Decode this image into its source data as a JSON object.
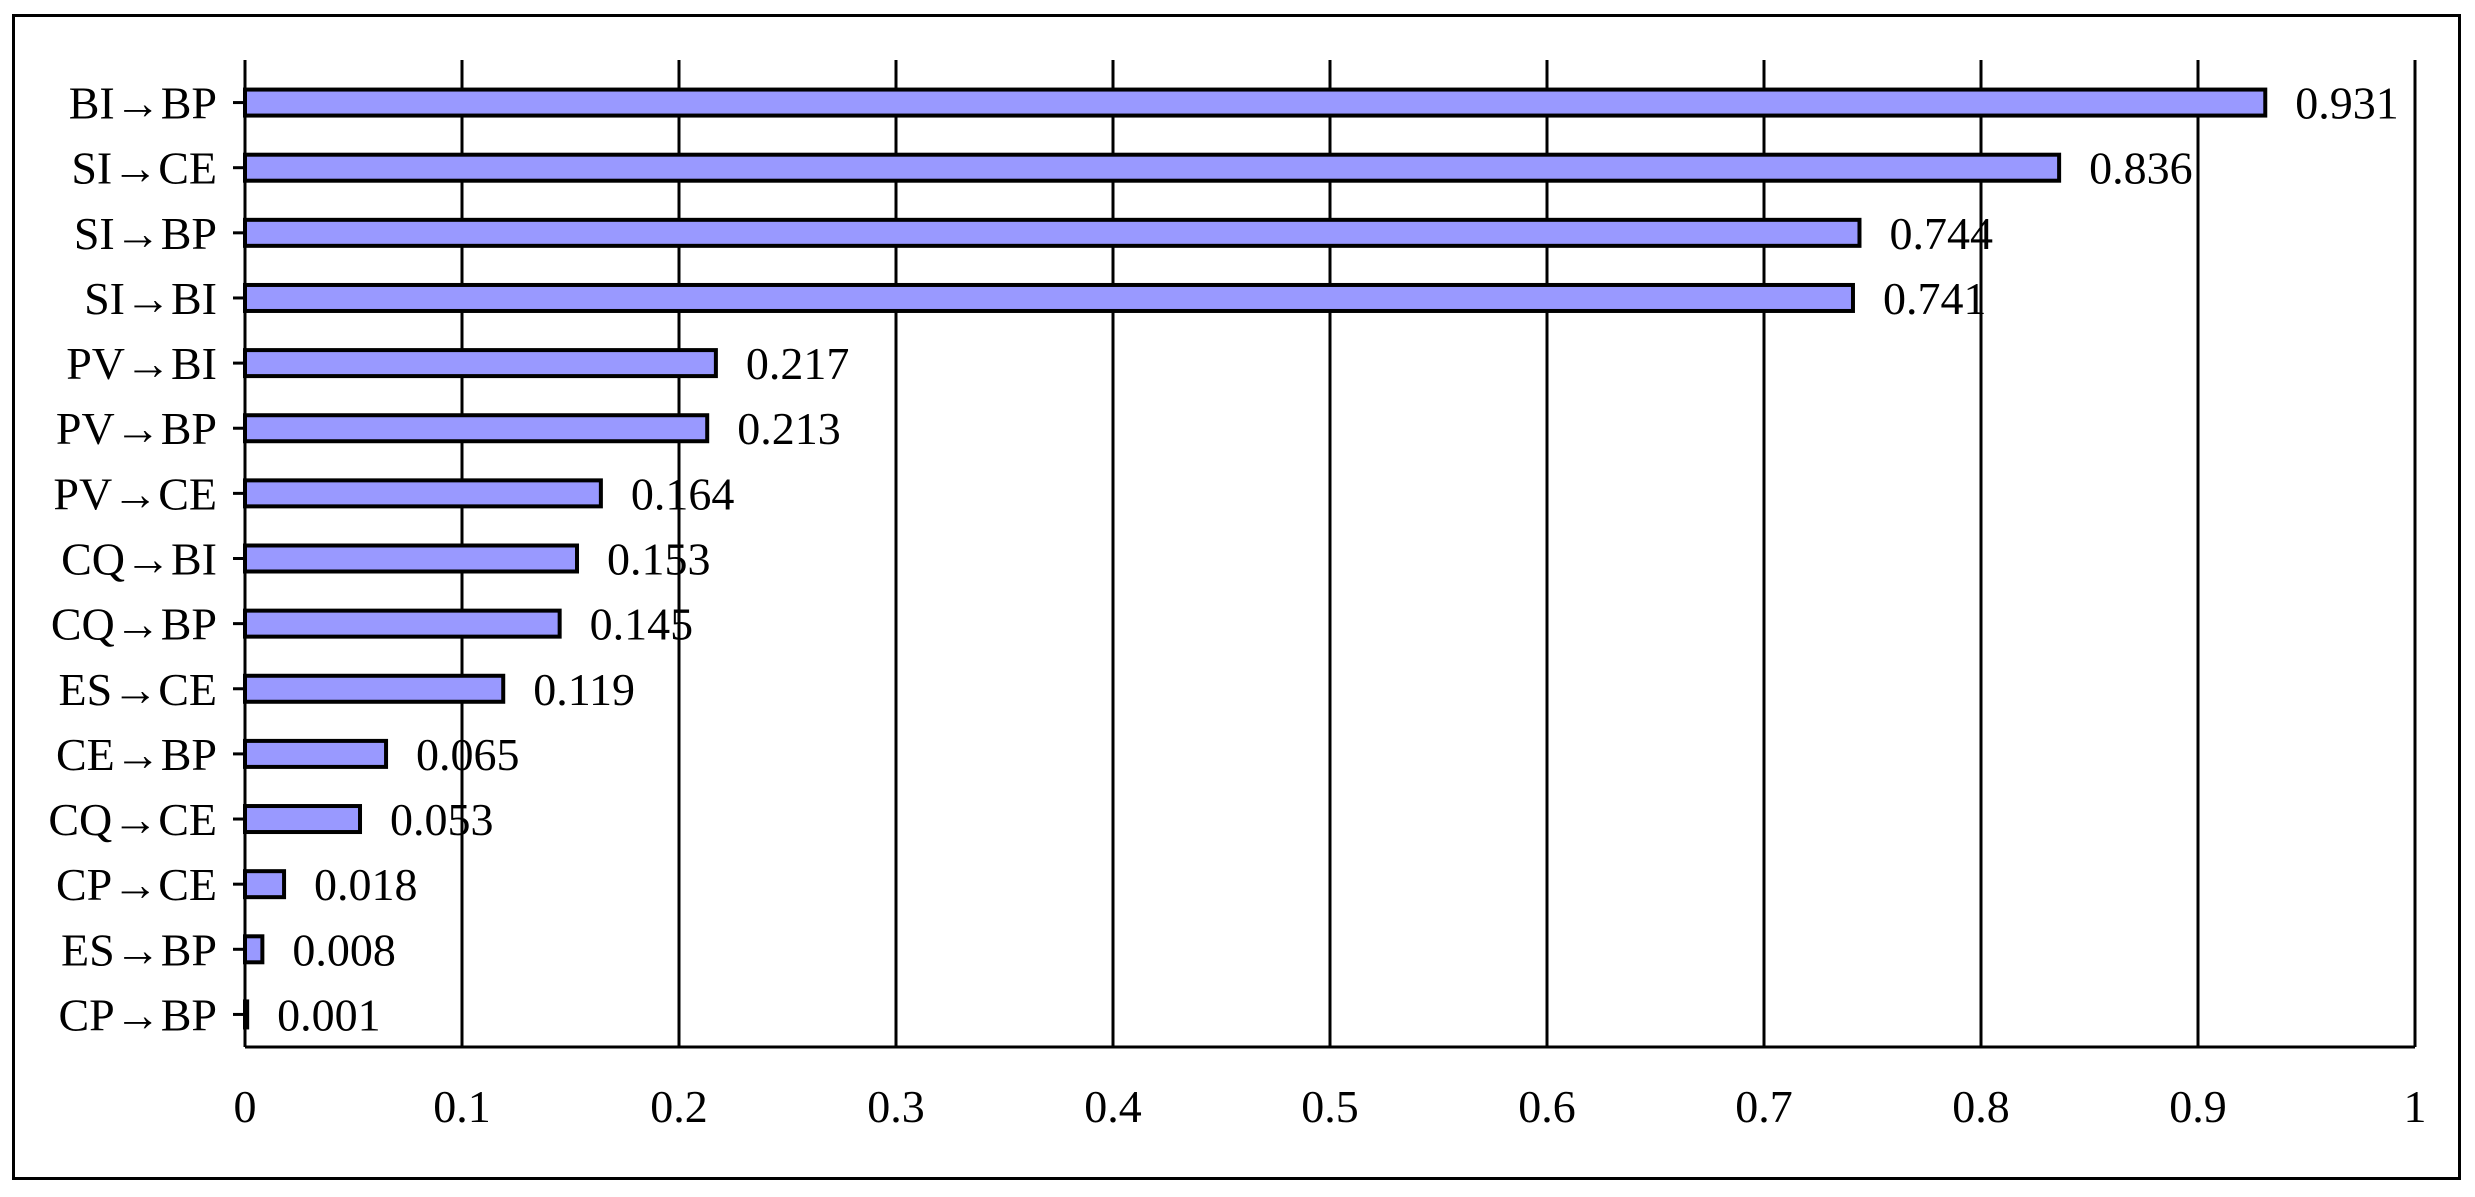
{
  "chart_data": {
    "type": "bar",
    "orientation": "horizontal",
    "categories": [
      "BI→BP",
      "SI→CE",
      "SI→BP",
      "SI→BI",
      "PV→BI",
      "PV→BP",
      "PV→CE",
      "CQ→BI",
      "CQ→BP",
      "ES→CE",
      "CE→BP",
      "CQ→CE",
      "CP→CE",
      "ES→BP",
      "CP→BP"
    ],
    "values": [
      0.931,
      0.836,
      0.744,
      0.741,
      0.217,
      0.213,
      0.164,
      0.153,
      0.145,
      0.119,
      0.065,
      0.053,
      0.018,
      0.008,
      0.001
    ],
    "value_labels": [
      "0.931",
      "0.836",
      "0.744",
      "0.741",
      "0.217",
      "0.213",
      "0.164",
      "0.153",
      "0.145",
      "0.119",
      "0.065",
      "0.053",
      "0.018",
      "0.008",
      "0.001"
    ],
    "x_ticks": [
      "0",
      "0.1",
      "0.2",
      "0.3",
      "0.4",
      "0.5",
      "0.6",
      "0.7",
      "0.8",
      "0.9",
      "1"
    ],
    "xlim": [
      0,
      1
    ],
    "grid": "vertical",
    "bar_color": "#9999ff",
    "bar_edge_color": "#000000",
    "title": "",
    "xlabel": "",
    "ylabel": ""
  }
}
